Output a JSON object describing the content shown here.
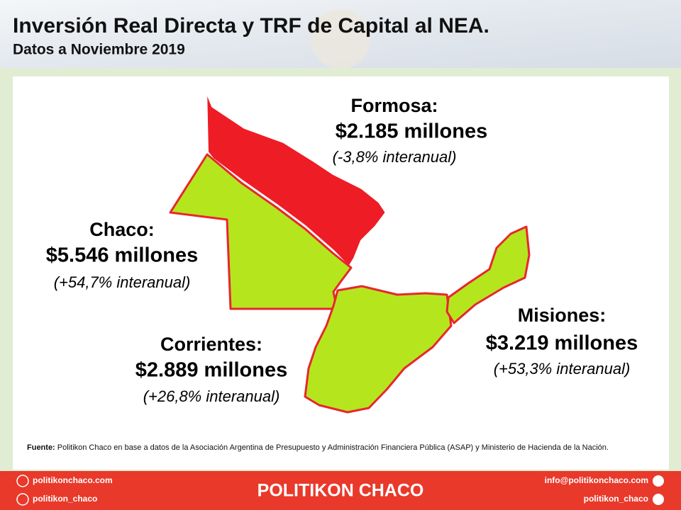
{
  "header": {
    "title": "Inversión Real Directa y TRF de Capital al NEA.",
    "subtitle": "Datos a Noviembre 2019"
  },
  "regions": [
    {
      "name": "Formosa:",
      "amount": "$2.185 millones",
      "change": "(-3,8% interanual)"
    },
    {
      "name": "Chaco:",
      "amount": "$5.546 millones",
      "change": "(+54,7% interanual)"
    },
    {
      "name": "Corrientes:",
      "amount": "$2.889 millones",
      "change": "(+26,8% interanual)"
    },
    {
      "name": "Misiones:",
      "amount": "$3.219 millones",
      "change": "(+53,3% interanual)"
    }
  ],
  "source": {
    "label": "Fuente:",
    "text": "Politikon Chaco en base a datos de la Asociación Argentina de Presupuesto y Administración Financiera Pública (ASAP) y Ministerio de Hacienda de la Nación."
  },
  "footer": {
    "website": "politikonchaco.com",
    "instagram": "politikon_chaco",
    "brand": "POLITIKON CHACO",
    "email": "info@politikonchaco.com",
    "twitter": "politikon_chaco"
  }
}
